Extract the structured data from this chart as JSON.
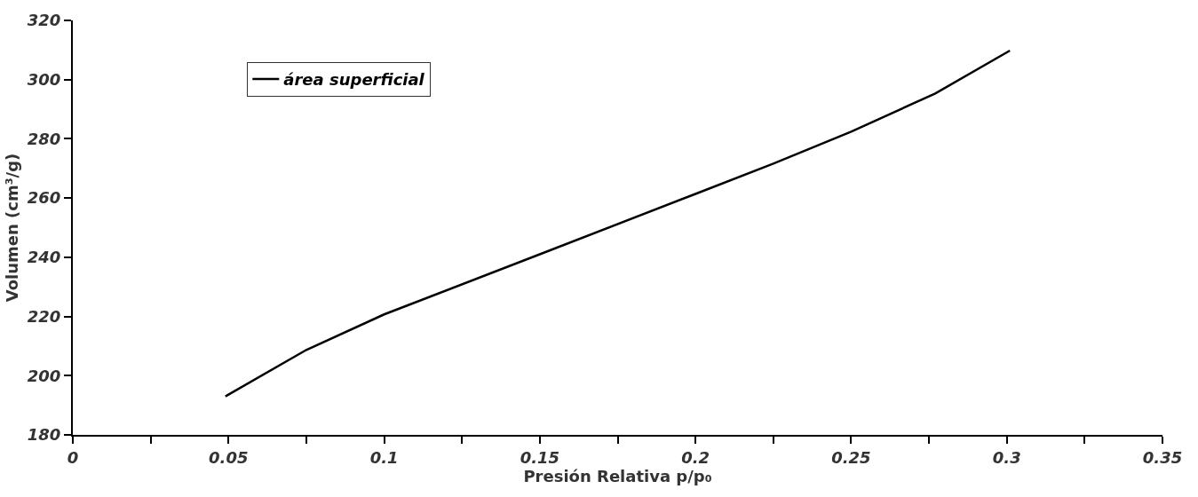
{
  "chart_data": {
    "type": "line",
    "xlabel": "Presión Relativa p/p₀",
    "ylabel": "Volumen (cm³/g)",
    "x": [
      0.049,
      0.075,
      0.1,
      0.15,
      0.2,
      0.225,
      0.25,
      0.277,
      0.301
    ],
    "series": [
      {
        "name": "área superficial",
        "color": "#000000",
        "values": [
          193,
          208.7,
          220.7,
          241,
          261.4,
          271.6,
          282.4,
          295.3,
          309.8
        ]
      }
    ],
    "xlim": [
      0,
      0.35
    ],
    "ylim": [
      180,
      320
    ],
    "xticks": [
      0,
      {
        "value": 0.025,
        "label": null
      },
      0.05,
      {
        "value": 0.075,
        "label": null
      },
      0.1,
      {
        "value": 0.125,
        "label": null
      },
      0.15,
      {
        "value": 0.175,
        "label": null
      },
      0.2,
      {
        "value": 0.225,
        "label": null
      },
      0.25,
      {
        "value": 0.275,
        "label": null
      },
      0.3,
      {
        "value": 0.325,
        "label": null
      },
      0.35
    ],
    "yticks": [
      180,
      200,
      220,
      240,
      260,
      280,
      300,
      320
    ],
    "grid": false,
    "legend": "top left",
    "marker": "none",
    "line_style": "solid"
  }
}
